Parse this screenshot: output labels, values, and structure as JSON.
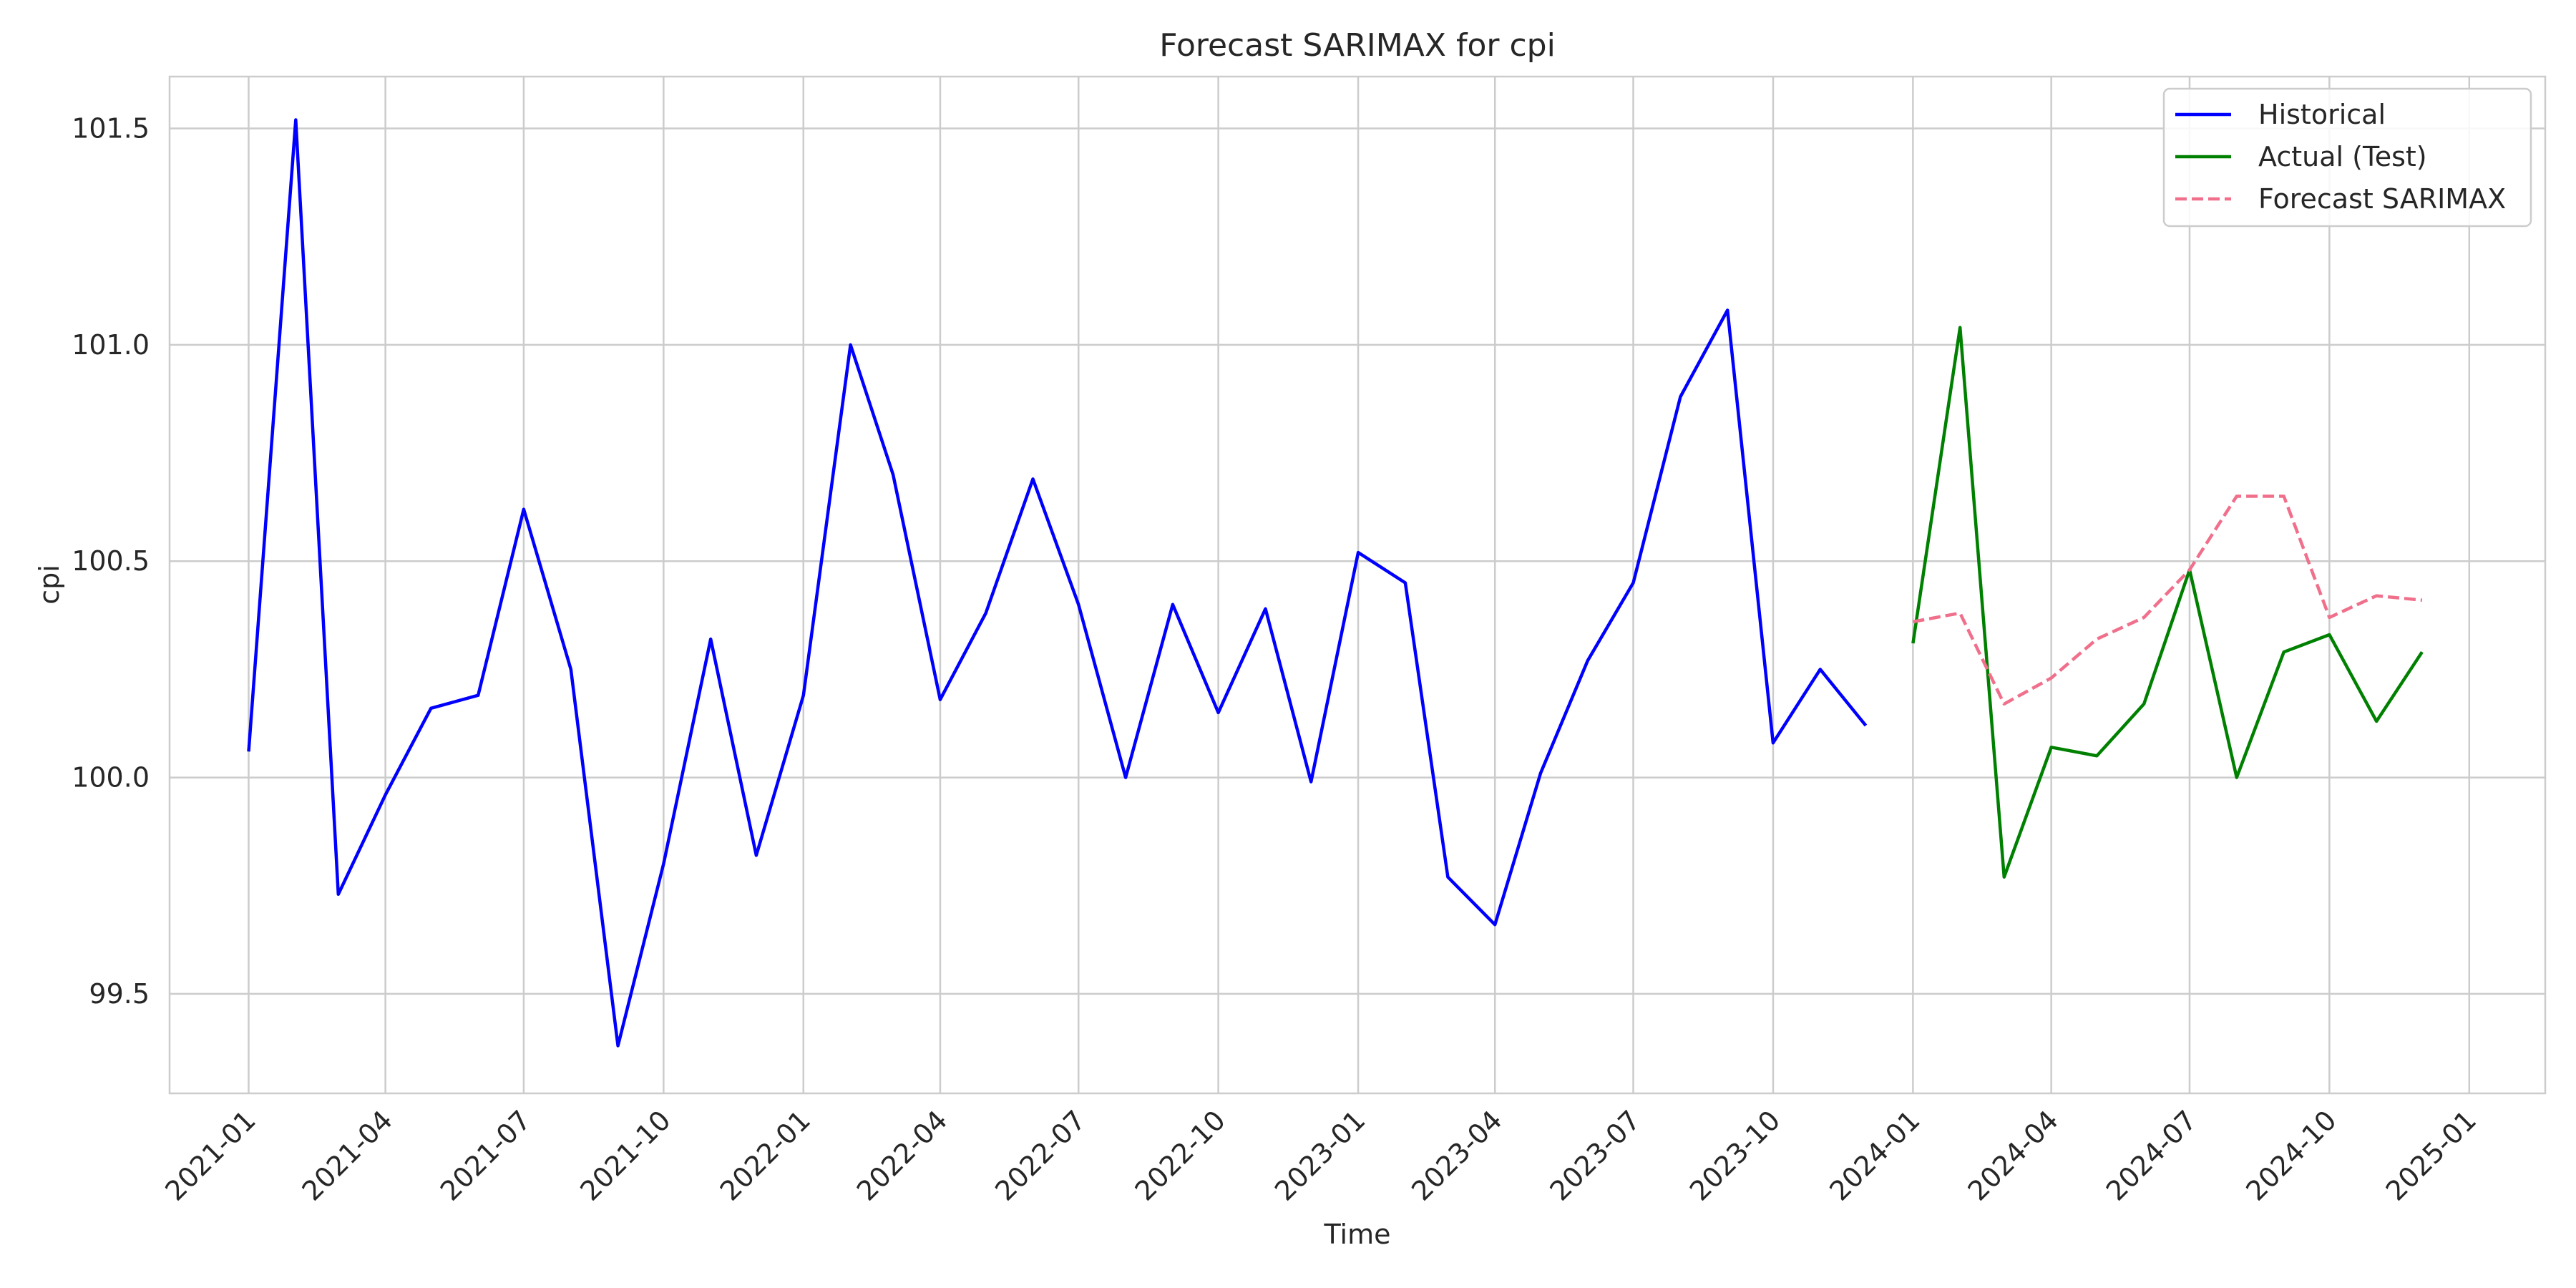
{
  "chart_data": {
    "type": "line",
    "title": "Forecast SARIMAX for cpi",
    "xlabel": "Time",
    "ylabel": "cpi",
    "x_ticks": [
      "2021-01",
      "2021-04",
      "2021-07",
      "2021-10",
      "2022-01",
      "2022-04",
      "2022-07",
      "2022-10",
      "2023-01",
      "2023-04",
      "2023-07",
      "2023-10",
      "2024-01",
      "2024-04",
      "2024-07",
      "2024-10",
      "2025-01"
    ],
    "y_ticks": [
      "99.5",
      "100.0",
      "100.5",
      "101.0",
      "101.5"
    ],
    "ylim": [
      99.27,
      101.62
    ],
    "xlim": [
      "2020-11-10",
      "2025-02-20"
    ],
    "grid": true,
    "legend_position": "top-right",
    "series": [
      {
        "name": "Historical",
        "color": "#0000ff",
        "style": "solid",
        "x": [
          "2021-01",
          "2021-02",
          "2021-03",
          "2021-04",
          "2021-05",
          "2021-06",
          "2021-07",
          "2021-08",
          "2021-09",
          "2021-10",
          "2021-11",
          "2021-12",
          "2022-01",
          "2022-02",
          "2022-03",
          "2022-04",
          "2022-05",
          "2022-06",
          "2022-07",
          "2022-08",
          "2022-09",
          "2022-10",
          "2022-11",
          "2022-12",
          "2023-01",
          "2023-02",
          "2023-03",
          "2023-04",
          "2023-05",
          "2023-06",
          "2023-07",
          "2023-08",
          "2023-09",
          "2023-10",
          "2023-11",
          "2023-12"
        ],
        "values": [
          100.06,
          101.52,
          99.73,
          99.96,
          100.16,
          100.19,
          100.62,
          100.25,
          99.38,
          99.8,
          100.32,
          99.82,
          100.19,
          101.0,
          100.7,
          100.18,
          100.38,
          100.69,
          100.4,
          100.0,
          100.4,
          100.15,
          100.39,
          99.99,
          100.52,
          100.45,
          99.77,
          99.66,
          100.01,
          100.27,
          100.45,
          100.88,
          101.08,
          100.08,
          100.25,
          100.12
        ]
      },
      {
        "name": "Actual (Test)",
        "color": "#008000",
        "style": "solid",
        "x": [
          "2024-01",
          "2024-02",
          "2024-03",
          "2024-04",
          "2024-05",
          "2024-06",
          "2024-07",
          "2024-08",
          "2024-09",
          "2024-10",
          "2024-11",
          "2024-12"
        ],
        "values": [
          100.31,
          101.04,
          99.77,
          100.07,
          100.05,
          100.17,
          100.48,
          100.0,
          100.29,
          100.33,
          100.13,
          100.29
        ]
      },
      {
        "name": "Forecast SARIMAX",
        "color": "#f0708c",
        "style": "dashed",
        "x": [
          "2024-01",
          "2024-02",
          "2024-03",
          "2024-04",
          "2024-05",
          "2024-06",
          "2024-07",
          "2024-08",
          "2024-09",
          "2024-10",
          "2024-11",
          "2024-12"
        ],
        "values": [
          100.36,
          100.38,
          100.17,
          100.23,
          100.32,
          100.37,
          100.48,
          100.65,
          100.65,
          100.37,
          100.42,
          100.41
        ]
      }
    ]
  }
}
